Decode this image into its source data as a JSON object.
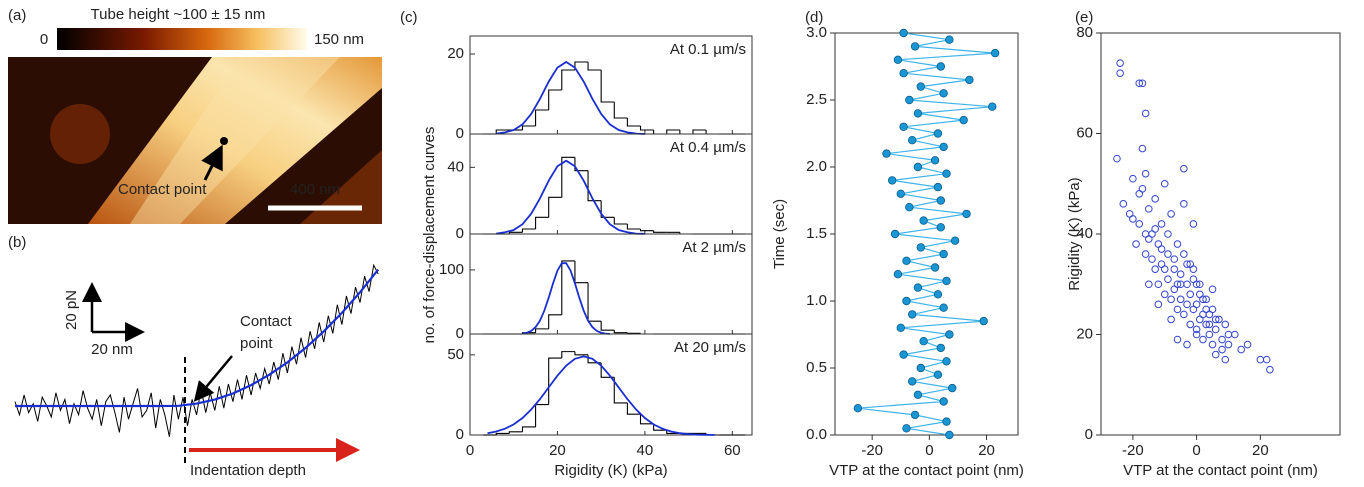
{
  "chart_data": [
    {
      "type": "image",
      "panel_label": "(a)",
      "colorbar_label": "Tube height ~100 ± 15 nm",
      "colorbar_min": "0",
      "colorbar_max": "150 nm",
      "annotation": "Contact point",
      "scale_bar": "400 nm"
    },
    {
      "type": "line",
      "panel_label": "(b)",
      "scale_x_label": "20 nm",
      "scale_y_label": "20 pN",
      "contact_label": [
        "Contact",
        "point"
      ],
      "depth_label": "Indentation depth",
      "series": [
        {
          "color": "#000000",
          "x": [
            0,
            2,
            4,
            6,
            8,
            10,
            12,
            14,
            16,
            18,
            20,
            22,
            24,
            26,
            28,
            30,
            32,
            34,
            36,
            38,
            40,
            42,
            44,
            46,
            48,
            50,
            52,
            54,
            56,
            58,
            60,
            62,
            64,
            66,
            68,
            70,
            72,
            74,
            76,
            78,
            80,
            82,
            84,
            86,
            88,
            90,
            92,
            94,
            96,
            98,
            100,
            102,
            104,
            106,
            108,
            110,
            112,
            114,
            116,
            118,
            120,
            122,
            124,
            126,
            128,
            130,
            132,
            134,
            136,
            138,
            140,
            142,
            144,
            146,
            148,
            150,
            152,
            154,
            156,
            158,
            160
          ],
          "values": [
            2,
            -4,
            5,
            -3,
            1,
            -7,
            4,
            0,
            -5,
            6,
            -2,
            3,
            -8,
            1,
            -4,
            7,
            -1,
            -6,
            3,
            -9,
            2,
            5,
            -3,
            -12,
            4,
            -6,
            1,
            8,
            -5,
            -2,
            6,
            -10,
            3,
            -4,
            -14,
            5,
            -6,
            4,
            -9,
            3,
            -4,
            8,
            -3,
            6,
            -2,
            9,
            -1,
            10,
            2,
            12,
            3,
            14,
            5,
            15,
            8,
            17,
            10,
            20,
            12,
            24,
            15,
            27,
            19,
            31,
            22,
            34,
            26,
            38,
            29,
            41,
            33,
            46,
            37,
            50,
            42,
            54,
            47,
            59,
            52,
            64,
            60
          ]
        },
        {
          "color": "#1a2fd0",
          "x": [
            0,
            8,
            16,
            24,
            32,
            40,
            48,
            56,
            64,
            72,
            80,
            88,
            96,
            104,
            112,
            120,
            128,
            136,
            144,
            152,
            160
          ],
          "values": [
            0,
            0,
            0,
            0,
            0,
            0,
            0,
            0,
            0,
            0.1,
            1.1,
            2.9,
            5.7,
            9.5,
            14.2,
            19.8,
            26.4,
            33.9,
            42.3,
            51.7,
            62
          ]
        }
      ]
    },
    {
      "type": "histogram",
      "panel_label": "(c)",
      "xlabel": "Rigidity (K)  (kPa)",
      "ylabel": "no. of force-displacement curves",
      "xlim": [
        0,
        64.5
      ],
      "xticks": [
        0,
        20,
        40,
        60
      ],
      "fit_color": "#1a2fd0",
      "bins": [
        3,
        6,
        9,
        12,
        15,
        18,
        21,
        24,
        27,
        30,
        33,
        36,
        39,
        42,
        45,
        48,
        51,
        54,
        57,
        60,
        63
      ],
      "panels": [
        {
          "label": "At 0.1 µm/s",
          "ylim": [
            0,
            24.5
          ],
          "yticks": [
            0,
            20
          ],
          "counts": [
            0,
            1,
            1,
            2,
            6,
            11,
            16,
            18,
            16,
            8,
            4,
            2,
            1,
            0,
            1,
            0,
            1,
            0,
            0,
            0
          ],
          "fit_x": [
            6,
            8,
            10,
            12,
            14,
            16,
            18,
            20,
            22,
            24,
            26,
            28,
            30,
            32,
            34,
            36,
            38,
            40
          ],
          "fit": [
            0.1,
            0.4,
            1.0,
            2.4,
            5.0,
            8.8,
            13.1,
            16.6,
            18,
            16.6,
            13.1,
            8.8,
            5.0,
            2.4,
            1.0,
            0.4,
            0.1,
            0.0
          ]
        },
        {
          "label": "At 0.4 µm/s",
          "ylim": [
            0,
            60
          ],
          "yticks": [
            0,
            40
          ],
          "counts": [
            0,
            0,
            1,
            3,
            10,
            22,
            46,
            38,
            20,
            10,
            6,
            3,
            2,
            1,
            1,
            0,
            0,
            0,
            0,
            0
          ],
          "fit_x": [
            6,
            8,
            10,
            12,
            14,
            16,
            18,
            20,
            22,
            24,
            26,
            28,
            30,
            32,
            34,
            36,
            38,
            40
          ],
          "fit": [
            0.2,
            1.0,
            2.4,
            5.9,
            12.2,
            21.4,
            32.0,
            40.6,
            44,
            40.6,
            32.0,
            21.4,
            12.2,
            5.9,
            2.4,
            1.0,
            0.2,
            0.1
          ]
        },
        {
          "label": "At 2 µm/s",
          "ylim": [
            0,
            156
          ],
          "yticks": [
            0,
            100
          ],
          "counts": [
            0,
            0,
            0,
            2,
            8,
            30,
            114,
            80,
            20,
            6,
            2,
            1,
            0,
            0,
            0,
            0,
            0,
            0,
            0,
            0
          ],
          "fit_x": [
            12,
            13,
            14,
            15,
            16,
            17,
            18,
            19,
            20,
            21,
            22,
            23,
            24,
            25,
            26,
            27,
            28,
            29,
            30,
            31,
            32
          ],
          "fit": [
            0.7,
            2.0,
            4.9,
            10.7,
            20.9,
            36.4,
            56.7,
            79.2,
            98.8,
            110.5,
            110.5,
            98.8,
            79.2,
            56.7,
            36.4,
            20.9,
            10.7,
            4.9,
            2.0,
            0.7,
            0.2
          ]
        },
        {
          "label": "At 20 µm/s",
          "ylim": [
            0,
            63
          ],
          "yticks": [
            0,
            50
          ],
          "counts": [
            0,
            1,
            2,
            5,
            19,
            48,
            52,
            50,
            45,
            36,
            20,
            13,
            7,
            3,
            1,
            1,
            1,
            0,
            0,
            0
          ],
          "fit_x": [
            4,
            6,
            8,
            10,
            12,
            14,
            16,
            18,
            20,
            22,
            24,
            26,
            28,
            30,
            32,
            34,
            36,
            38,
            40,
            42,
            44,
            46,
            48,
            50,
            52,
            54,
            56
          ],
          "fit": [
            1.1,
            2.2,
            3.9,
            6.6,
            10.6,
            15.9,
            22.4,
            29.7,
            37.0,
            43.2,
            47.5,
            49,
            47.5,
            43.2,
            37.0,
            29.7,
            22.4,
            15.9,
            10.6,
            6.6,
            3.9,
            2.2,
            1.1,
            0.5,
            0.2,
            0.1,
            0.0
          ]
        }
      ]
    },
    {
      "type": "line",
      "panel_label": "(d)",
      "xlabel": "VTP at the contact point (nm)",
      "ylabel": "Time (sec)",
      "xlim": [
        -33,
        31
      ],
      "xticks": [
        -20,
        0,
        20
      ],
      "ylim": [
        0,
        3
      ],
      "yticks": [
        {
          "value": 0,
          "label": "0.0"
        },
        0.5,
        {
          "value": 1,
          "label": "1.0"
        },
        1.5,
        {
          "value": 2,
          "label": "2.0"
        },
        2.5,
        {
          "value": 3,
          "label": "3.0"
        }
      ],
      "line_color": "#3fb4e8",
      "marker_color": "#1a96d4",
      "x": [
        7,
        -8,
        6,
        -5,
        -25,
        5,
        -4,
        8,
        -6,
        3,
        -3,
        6,
        -9,
        4,
        -2,
        7,
        -10,
        19,
        -6,
        5,
        -8,
        3,
        -4,
        6,
        -11,
        2,
        -8,
        5,
        -3,
        9,
        -12,
        4,
        -2,
        13,
        -7,
        4,
        -10,
        3,
        -13,
        6,
        -4,
        2,
        -15,
        5,
        -6,
        3,
        -9,
        12,
        -4,
        22,
        -7,
        5,
        -3,
        14,
        -9,
        4,
        -11,
        23,
        -5,
        7,
        -9
      ],
      "values": [
        0,
        0.05,
        0.1,
        0.15,
        0.2,
        0.25,
        0.3,
        0.35,
        0.4,
        0.45,
        0.5,
        0.55,
        0.6,
        0.65,
        0.7,
        0.75,
        0.8,
        0.85,
        0.9,
        0.95,
        1,
        1.05,
        1.1,
        1.15,
        1.2,
        1.25,
        1.3,
        1.35,
        1.4,
        1.45,
        1.5,
        1.55,
        1.6,
        1.65,
        1.7,
        1.75,
        1.8,
        1.85,
        1.9,
        1.95,
        2,
        2.05,
        2.1,
        2.15,
        2.2,
        2.25,
        2.3,
        2.35,
        2.4,
        2.45,
        2.5,
        2.55,
        2.6,
        2.65,
        2.7,
        2.75,
        2.8,
        2.85,
        2.9,
        2.95,
        3
      ]
    },
    {
      "type": "scatter",
      "panel_label": "(e)",
      "xlabel": "VTP at the contact point (nm)",
      "ylabel": "Rigidity (K)  (kPa)",
      "xlim": [
        -30,
        45
      ],
      "xticks": [
        -20,
        0,
        20
      ],
      "ylim": [
        0,
        80
      ],
      "yticks": [
        0,
        20,
        40,
        60,
        80
      ],
      "color": "#3344cc",
      "x": [
        -24,
        -24,
        -18,
        -17,
        -16,
        -25,
        -23,
        -21,
        -20,
        -18,
        -17,
        -16,
        -15,
        -14,
        -13,
        -12,
        -11,
        -10,
        -9,
        -8,
        -7,
        -6,
        -5,
        -4,
        -3,
        -2,
        -1,
        0,
        1,
        2,
        3,
        4,
        5,
        6,
        7,
        8,
        9,
        10,
        12,
        14,
        16,
        20,
        22,
        23,
        -19,
        -18,
        -16,
        -15,
        -14,
        -13,
        -12,
        -11,
        -10,
        -9,
        -8,
        -7,
        -6,
        -5,
        -4,
        -3,
        -2,
        -1,
        0,
        1,
        2,
        3,
        4,
        5,
        6,
        8,
        10,
        -15,
        -13,
        -11,
        -9,
        -7,
        -5,
        -3,
        -1,
        1,
        3,
        5,
        -12,
        -10,
        -8,
        -6,
        -4,
        -2,
        0,
        2,
        4,
        -20,
        -17,
        -4,
        -16,
        -1,
        0,
        -6,
        -3,
        6,
        9
      ],
      "values": [
        74,
        72,
        70,
        70,
        64,
        55,
        46,
        44,
        51,
        48,
        57,
        52,
        45,
        40,
        47,
        38,
        42,
        50,
        36,
        44,
        33,
        38,
        30,
        53,
        34,
        28,
        31,
        26,
        30,
        24,
        27,
        22,
        25,
        21,
        23,
        19,
        22,
        18,
        20,
        17,
        18,
        15,
        15,
        13,
        38,
        42,
        36,
        39,
        35,
        33,
        30,
        34,
        28,
        31,
        27,
        29,
        25,
        27,
        24,
        26,
        22,
        25,
        21,
        23,
        19,
        22,
        20,
        18,
        23,
        17,
        20,
        30,
        41,
        37,
        40,
        35,
        32,
        30,
        33,
        28,
        25,
        29,
        26,
        33,
        23,
        30,
        36,
        34,
        30,
        27,
        24,
        43,
        49,
        46,
        40,
        42,
        20,
        19,
        18,
        16,
        15
      ]
    }
  ]
}
